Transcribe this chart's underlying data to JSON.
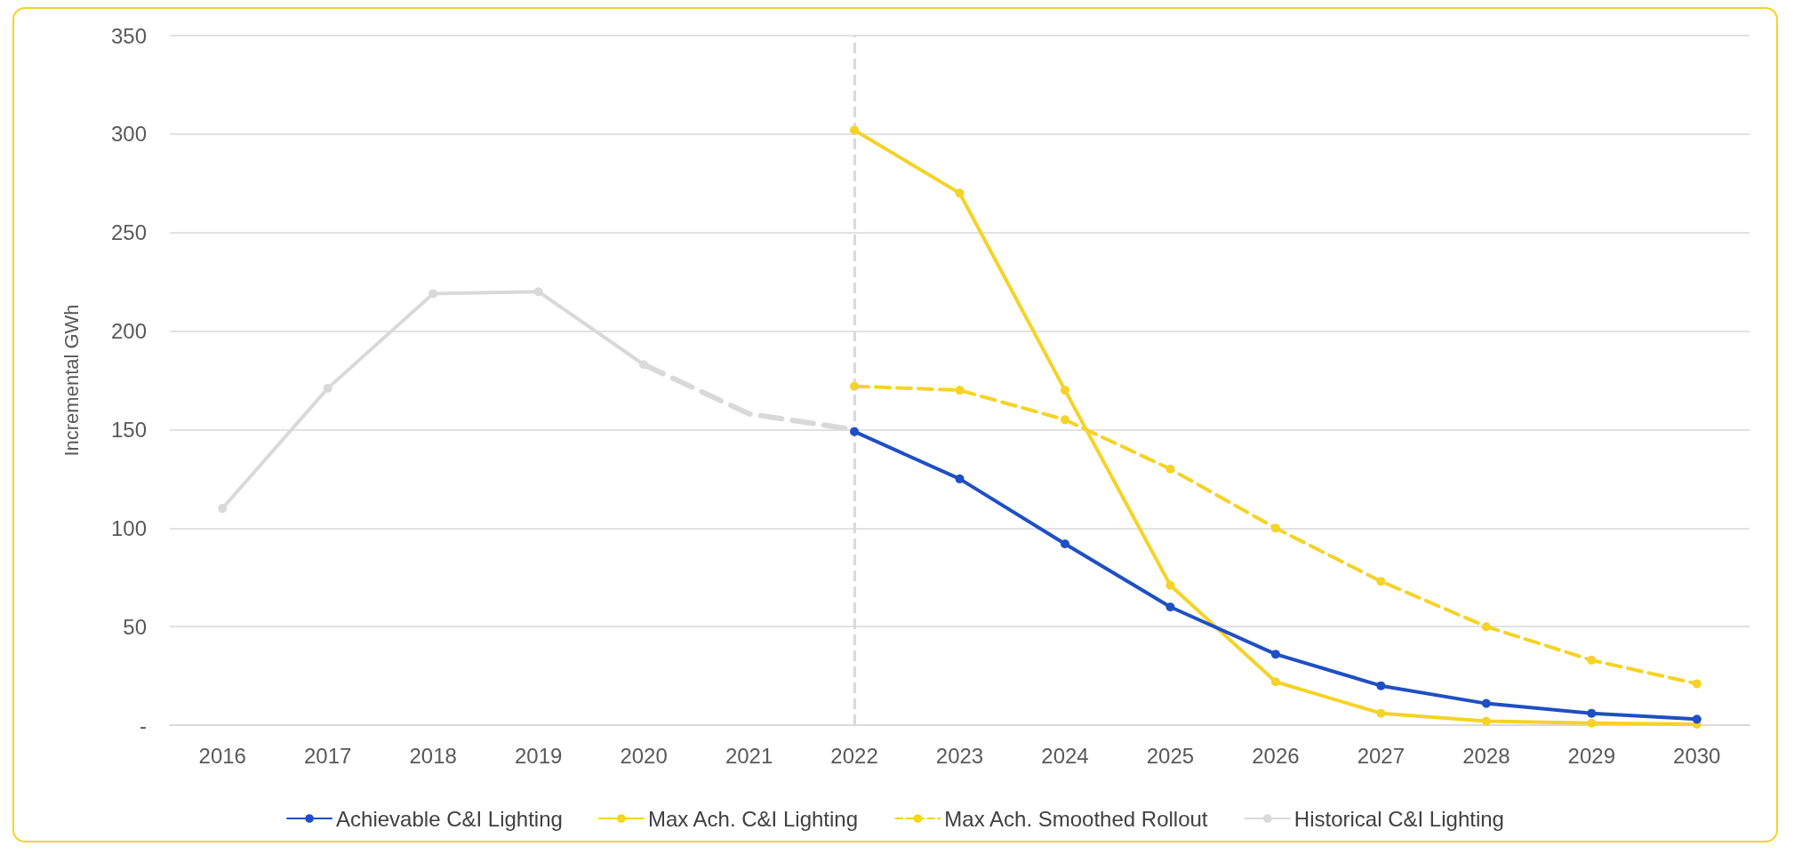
{
  "chart_data": {
    "type": "line",
    "ylabel": "Incremental GWh",
    "categories": [
      "2016",
      "2017",
      "2018",
      "2019",
      "2020",
      "2021",
      "2022",
      "2023",
      "2024",
      "2025",
      "2026",
      "2027",
      "2028",
      "2029",
      "2030"
    ],
    "series": [
      {
        "name": "Achievable C&I Lighting",
        "color": "#1f4fc4",
        "values": [
          null,
          null,
          null,
          null,
          null,
          null,
          149,
          125,
          92,
          60,
          36,
          20,
          11,
          6,
          3
        ]
      },
      {
        "name": "Max Ach. C&I Lighting",
        "color": "#f5d327",
        "values": [
          null,
          null,
          null,
          null,
          null,
          null,
          302,
          270,
          170,
          71,
          22,
          6,
          2,
          1,
          0.5
        ]
      },
      {
        "name": "Max Ach. Smoothed Rollout",
        "color": "#f5d327",
        "line_style": "dashed",
        "values": [
          null,
          null,
          null,
          null,
          null,
          null,
          172,
          170,
          155,
          130,
          100,
          73,
          50,
          33,
          21
        ]
      },
      {
        "name": "Historical C&I Lighting",
        "color": "#d9d9d9",
        "values": [
          110,
          171,
          219,
          220,
          183,
          null,
          null,
          null,
          null,
          null,
          null,
          null,
          null,
          null,
          null
        ]
      },
      {
        "color": "#d9d9d9",
        "line_style": "dashed",
        "marker": "none",
        "values": [
          null,
          null,
          null,
          null,
          183,
          158,
          150,
          null,
          null,
          null,
          null,
          null,
          null,
          null,
          null
        ]
      }
    ],
    "ylim": [
      0,
      350
    ],
    "yticks": [
      {
        "value": 0,
        "label": "-"
      },
      50,
      100,
      150,
      200,
      250,
      300,
      350
    ],
    "ref_lines": [
      {
        "axis": "x",
        "value": "2022",
        "color": "#d9d9d9",
        "line_style": "dashed"
      }
    ],
    "grid": "y",
    "legend": "bottom",
    "marker": "circle",
    "line_style": "solid"
  }
}
